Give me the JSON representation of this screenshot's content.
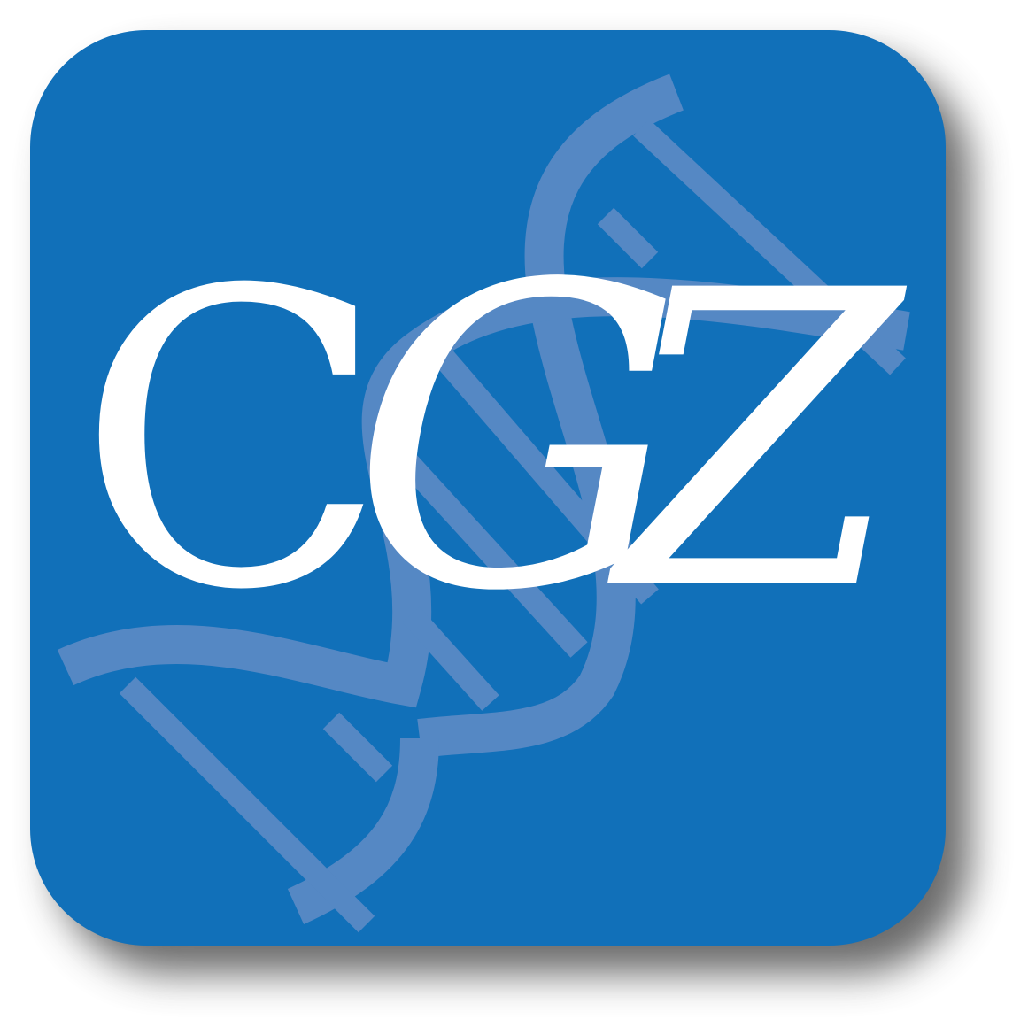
{
  "logo": {
    "letters": [
      "C",
      "G",
      "Z"
    ],
    "icon": "dna-helix-icon",
    "colors": {
      "tile": "#1170b9",
      "helix": "#5588c4",
      "letters": "#ffffff",
      "shadow": "#3a3a3a"
    }
  }
}
